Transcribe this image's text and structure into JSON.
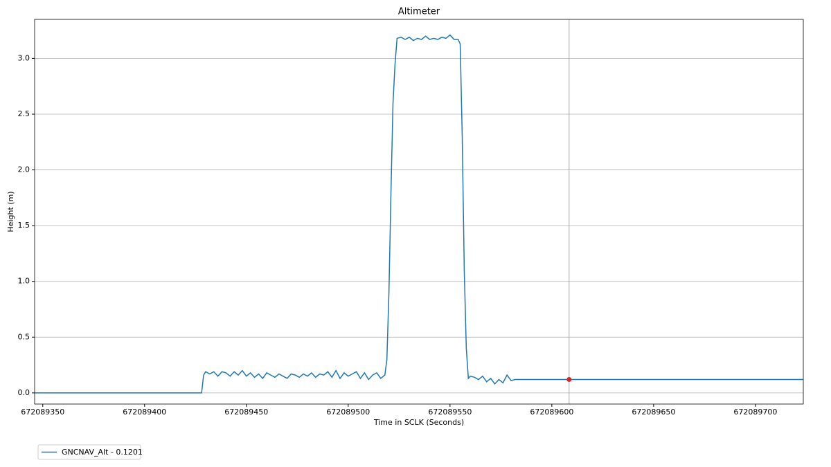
{
  "chart_data": {
    "type": "line",
    "title": "Altimeter",
    "x_label": "Time in SCLK (Seconds)",
    "y_label": "Height (m)",
    "x": [
      672089346,
      672089428,
      672089429,
      672089430,
      672089432,
      672089434,
      672089436,
      672089438,
      672089440,
      672089442,
      672089444,
      672089446,
      672089448,
      672089450,
      672089452,
      672089454,
      672089456,
      672089458,
      672089460,
      672089462,
      672089464,
      672089466,
      672089468,
      672089470,
      672089472,
      672089474,
      672089476,
      672089478,
      672089480,
      672089482,
      672089484,
      672089486,
      672089488,
      672089490,
      672089492,
      672089494,
      672089496,
      672089498,
      672089500,
      672089502,
      672089504,
      672089506,
      672089508,
      672089510,
      672089512,
      672089514,
      672089516,
      672089518,
      672089519,
      672089520,
      672089521,
      672089522,
      672089523,
      672089524,
      672089526,
      672089528,
      672089530,
      672089532,
      672089534,
      672089536,
      672089538,
      672089540,
      672089542,
      672089544,
      672089546,
      672089548,
      672089550,
      672089552,
      672089554,
      672089555,
      672089556,
      672089557,
      672089558,
      672089559,
      672089560,
      672089562,
      672089564,
      672089566,
      672089568,
      672089570,
      672089572,
      672089574,
      672089576,
      672089578,
      672089580,
      672089582,
      672089723.5
    ],
    "series": [
      {
        "name": "GNCNAV_Alt - 0.1201",
        "color": "#1f77b4",
        "values": [
          0,
          0,
          0.16,
          0.19,
          0.17,
          0.19,
          0.15,
          0.19,
          0.18,
          0.15,
          0.19,
          0.16,
          0.2,
          0.15,
          0.18,
          0.14,
          0.17,
          0.13,
          0.18,
          0.16,
          0.14,
          0.17,
          0.15,
          0.13,
          0.17,
          0.16,
          0.14,
          0.17,
          0.15,
          0.18,
          0.14,
          0.17,
          0.16,
          0.19,
          0.14,
          0.2,
          0.13,
          0.18,
          0.15,
          0.17,
          0.19,
          0.13,
          0.18,
          0.12,
          0.16,
          0.18,
          0.13,
          0.16,
          0.3,
          0.9,
          1.8,
          2.6,
          2.95,
          3.18,
          3.19,
          3.17,
          3.19,
          3.16,
          3.18,
          3.17,
          3.2,
          3.17,
          3.18,
          3.17,
          3.19,
          3.18,
          3.21,
          3.17,
          3.17,
          3.13,
          2.3,
          1.1,
          0.4,
          0.13,
          0.15,
          0.14,
          0.12,
          0.15,
          0.1,
          0.13,
          0.08,
          0.12,
          0.09,
          0.16,
          0.11,
          0.1201,
          0.1201
        ]
      }
    ],
    "marker": {
      "x": 672089608.5,
      "y": 0.1201,
      "color": "#d62728"
    },
    "xlim": [
      672089346,
      672089723.5
    ],
    "ylim": [
      -0.1,
      3.35
    ],
    "xticks": [
      672089350,
      672089400,
      672089450,
      672089500,
      672089550,
      672089600,
      672089650,
      672089700
    ],
    "yticks": [
      {
        "value": 0,
        "label": "0.0"
      },
      0.5,
      {
        "value": 1,
        "label": "1.0"
      },
      1.5,
      {
        "value": 2,
        "label": "2.0"
      },
      2.5,
      {
        "value": 3,
        "label": "3.0"
      }
    ],
    "grid": "y"
  }
}
